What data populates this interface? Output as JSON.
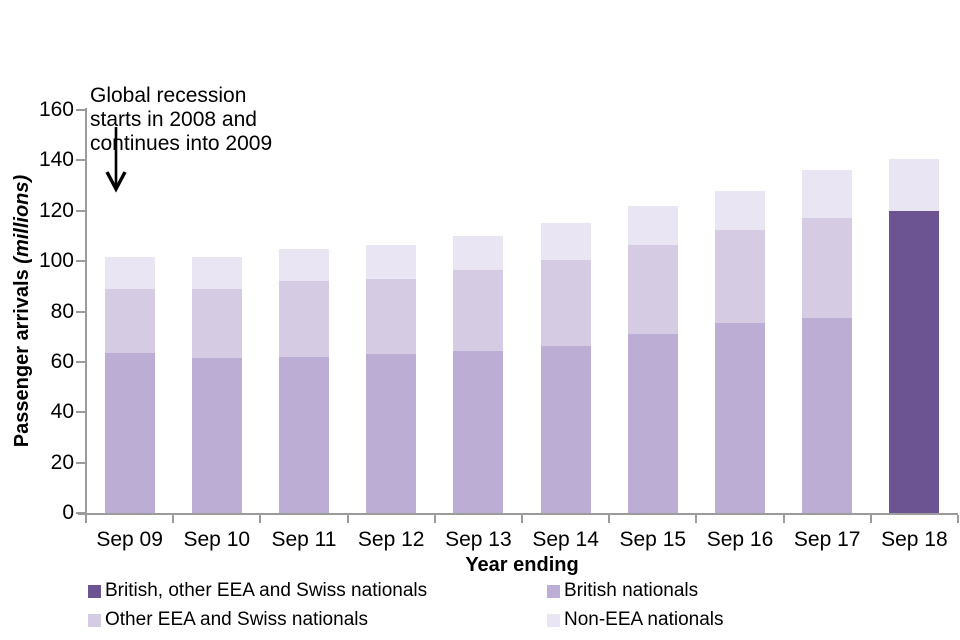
{
  "chart_data": {
    "type": "bar",
    "stacked": true,
    "title": "",
    "xlabel": "Year ending",
    "ylabel": "Passenger arrivals",
    "ylabel_unit": "(millions)",
    "ylim": [
      0,
      160
    ],
    "yticks": [
      0,
      20,
      40,
      60,
      80,
      100,
      120,
      140,
      160
    ],
    "grid": false,
    "legend_position": "bottom",
    "categories": [
      "Sep 09",
      "Sep 10",
      "Sep 11",
      "Sep 12",
      "Sep 13",
      "Sep 14",
      "Sep 15",
      "Sep 16",
      "Sep 17",
      "Sep 18"
    ],
    "series": [
      {
        "name": "British, other EEA and Swiss nationals",
        "color": "#6C5391",
        "values": [
          0,
          0,
          0,
          0,
          0,
          0,
          0,
          0,
          0,
          120
        ]
      },
      {
        "name": "British nationals",
        "color": "#BCADD4",
        "values": [
          63.5,
          61.5,
          62,
          63,
          64.5,
          66.5,
          71,
          75.5,
          77.5,
          0
        ]
      },
      {
        "name": "Other EEA and Swiss nationals",
        "color": "#D5CCE4",
        "values": [
          25.5,
          27.5,
          30,
          30,
          32,
          34,
          35.5,
          37,
          39.5,
          0
        ]
      },
      {
        "name": "Non-EEA nationals",
        "color": "#E9E5F3",
        "values": [
          12.5,
          12.5,
          13,
          13.5,
          13.5,
          14.5,
          15.5,
          15.5,
          19,
          20.5
        ]
      }
    ],
    "totals": [
      101.5,
      101.5,
      105,
      106.5,
      110,
      115,
      122,
      128,
      136,
      140.5
    ],
    "annotation": {
      "line1": "Global recession",
      "line2": "starts in 2008 and",
      "line3": "continues into 2009"
    }
  },
  "colors": {
    "axis": "#9B9B9B",
    "text": "#000000",
    "background": "#FFFFFF"
  }
}
